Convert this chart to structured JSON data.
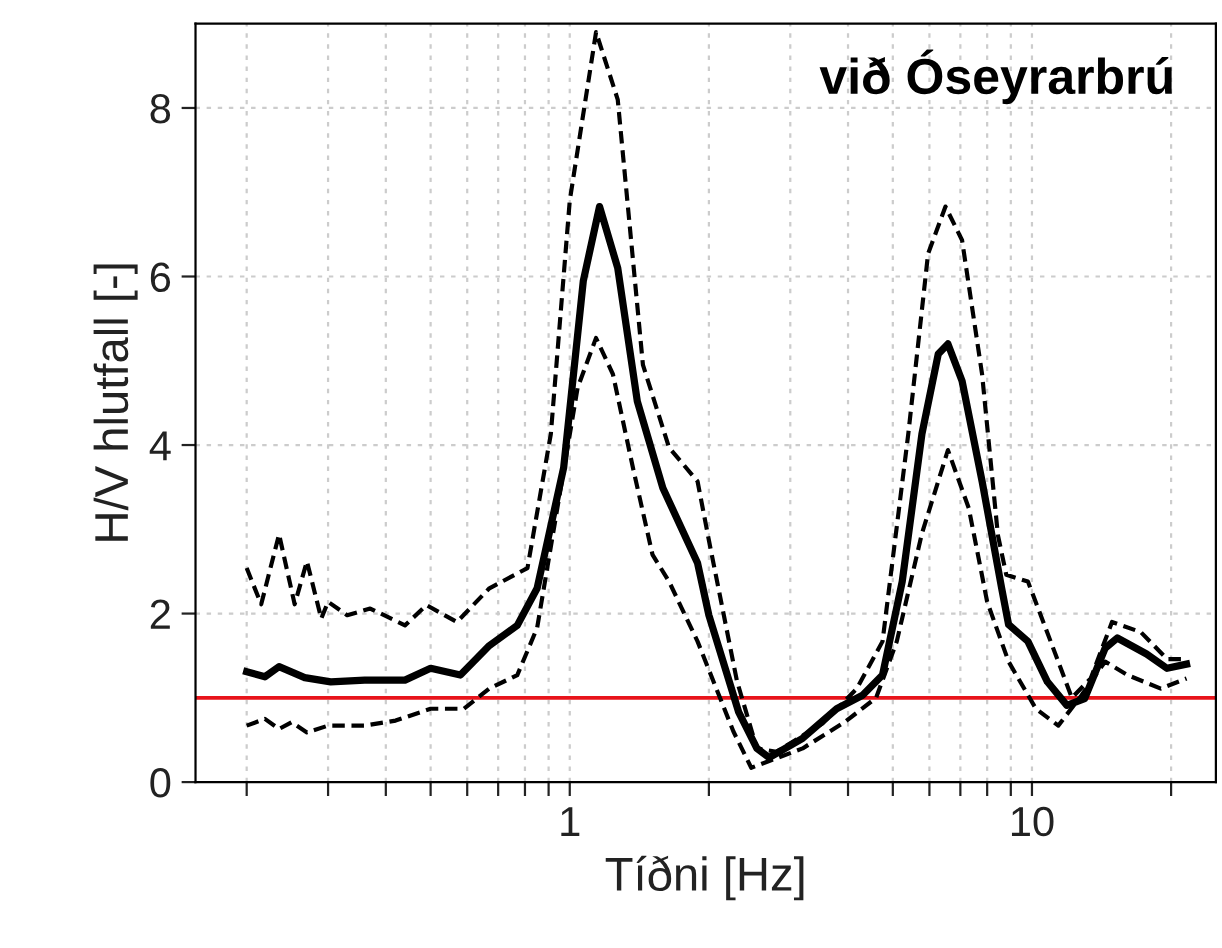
{
  "chart_data": {
    "type": "line",
    "xlabel": "Tíðni [Hz]",
    "ylabel": "H/V hlutfall [-]",
    "annotations": [
      "við Óseyrarbrú"
    ],
    "log": "x",
    "xlim": [
      0.155,
      25
    ],
    "ylim": [
      0,
      9
    ],
    "xticks": [
      {
        "value": 0.2,
        "label": null
      },
      {
        "value": 0.3,
        "label": null
      },
      {
        "value": 0.4,
        "label": null
      },
      {
        "value": 0.5,
        "label": null
      },
      {
        "value": 0.6,
        "label": null
      },
      {
        "value": 0.7,
        "label": null
      },
      {
        "value": 0.8,
        "label": null
      },
      {
        "value": 0.9,
        "label": null
      },
      1,
      {
        "value": 2,
        "label": null
      },
      {
        "value": 3,
        "label": null
      },
      {
        "value": 4,
        "label": null
      },
      {
        "value": 5,
        "label": null
      },
      {
        "value": 6,
        "label": null
      },
      {
        "value": 7,
        "label": null
      },
      {
        "value": 8,
        "label": null
      },
      {
        "value": 9,
        "label": null
      },
      10,
      {
        "value": 20,
        "label": null
      }
    ],
    "yticks": [
      0,
      2,
      4,
      6,
      8
    ],
    "grid": true,
    "ref_lines": [
      {
        "axis": "y",
        "value": 1,
        "color": "#e8141b",
        "line_style": "solid"
      }
    ],
    "series": [
      {
        "color": "#000000",
        "line_style": "solid",
        "x": [
          0.2,
          0.219,
          0.235,
          0.267,
          0.304,
          0.36,
          0.44,
          0.5,
          0.58,
          0.67,
          0.77,
          0.85,
          0.97,
          1.07,
          1.16,
          1.27,
          1.4,
          1.59,
          1.89,
          2.0,
          2.32,
          2.54,
          2.7,
          3.19,
          3.78,
          4.3,
          4.75,
          5.24,
          5.78,
          6.27,
          6.58,
          7.06,
          7.8,
          8.6,
          8.9,
          9.8,
          10.8,
          11.9,
          13.0,
          14.4,
          15.3,
          17.7,
          19.6,
          21.6
        ],
        "values": [
          1.31,
          1.25,
          1.37,
          1.24,
          1.19,
          1.21,
          1.21,
          1.35,
          1.27,
          1.62,
          1.86,
          2.3,
          3.73,
          5.95,
          6.83,
          6.1,
          4.52,
          3.49,
          2.6,
          1.98,
          0.83,
          0.4,
          0.29,
          0.52,
          0.87,
          1.03,
          1.27,
          2.38,
          4.13,
          5.08,
          5.2,
          4.76,
          3.57,
          2.3,
          1.87,
          1.67,
          1.19,
          0.91,
          0.99,
          1.59,
          1.71,
          1.52,
          1.35,
          1.4
        ]
      },
      {
        "color": "#000000",
        "line_style": "dashed",
        "x": [
          0.2,
          0.215,
          0.235,
          0.254,
          0.27,
          0.29,
          0.3,
          0.33,
          0.37,
          0.44,
          0.49,
          0.57,
          0.67,
          0.81,
          0.91,
          1.0,
          1.14,
          1.27,
          1.44,
          1.64,
          1.89,
          2.0,
          2.3,
          2.54,
          2.8,
          3.53,
          4.18,
          4.75,
          5.4,
          5.96,
          6.5,
          7.06,
          7.8,
          8.44,
          8.8,
          9.8,
          10.7,
          12.2,
          13.4,
          14.9,
          17.2,
          19.6,
          21.6
        ],
        "values": [
          2.54,
          2.11,
          2.94,
          2.11,
          2.62,
          1.94,
          2.14,
          1.98,
          2.06,
          1.86,
          2.1,
          1.9,
          2.3,
          2.54,
          4.13,
          6.9,
          8.9,
          8.1,
          4.95,
          3.97,
          3.57,
          2.87,
          1.2,
          0.4,
          0.36,
          0.7,
          1.11,
          1.67,
          4.13,
          6.27,
          6.83,
          6.43,
          4.84,
          2.93,
          2.46,
          2.38,
          1.83,
          1.0,
          1.23,
          1.9,
          1.78,
          1.46,
          1.46
        ]
      },
      {
        "color": "#000000",
        "line_style": "dashed",
        "x": [
          0.2,
          0.219,
          0.235,
          0.25,
          0.27,
          0.3,
          0.36,
          0.42,
          0.5,
          0.59,
          0.67,
          0.77,
          0.85,
          0.94,
          1.04,
          1.14,
          1.24,
          1.37,
          1.51,
          1.64,
          1.89,
          2.26,
          2.47,
          2.7,
          3.19,
          3.93,
          4.6,
          5.1,
          5.78,
          6.58,
          7.3,
          8.0,
          8.9,
          10.2,
          11.4,
          12.8,
          14.4,
          16.1,
          19.0,
          21.6
        ],
        "values": [
          0.67,
          0.75,
          0.63,
          0.71,
          0.59,
          0.67,
          0.67,
          0.73,
          0.87,
          0.87,
          1.11,
          1.27,
          1.83,
          3.25,
          4.68,
          5.27,
          4.84,
          3.73,
          2.7,
          2.38,
          1.67,
          0.6,
          0.17,
          0.25,
          0.4,
          0.71,
          1.0,
          1.67,
          2.95,
          3.94,
          3.25,
          2.14,
          1.43,
          0.87,
          0.67,
          1.03,
          1.43,
          1.27,
          1.11,
          1.23
        ]
      }
    ]
  }
}
